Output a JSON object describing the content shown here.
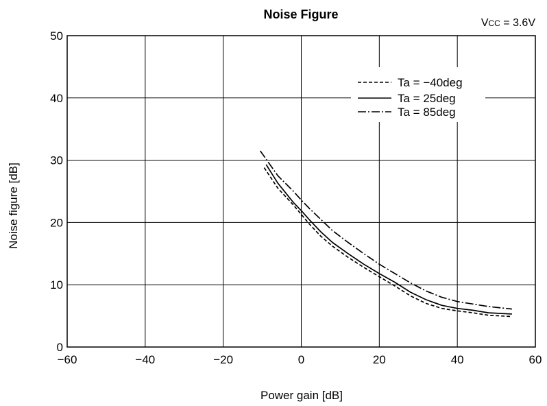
{
  "chart_data": {
    "type": "line",
    "title": "Noise Figure",
    "annotation": "Vcc = 3.6V",
    "annotation_parts": {
      "v": "V",
      "sub": "CC",
      "rest": " = 3.6V"
    },
    "xlabel": "Power gain [dB]",
    "ylabel": "Noise figure [dB]",
    "xlim": [
      -60,
      60
    ],
    "ylim": [
      0,
      50
    ],
    "x_ticks": [
      -60,
      -40,
      -20,
      0,
      20,
      40,
      60
    ],
    "x_tick_labels": [
      "−60",
      "−40",
      "−20",
      "0",
      "20",
      "40",
      "60"
    ],
    "y_ticks": [
      0,
      10,
      20,
      30,
      40,
      50
    ],
    "y_tick_labels": [
      "0",
      "10",
      "20",
      "30",
      "40",
      "50"
    ],
    "grid": true,
    "legend_position": "top-right",
    "series": [
      {
        "name": "Ta = −40deg",
        "dash": "dashed",
        "points": [
          [
            -9.5,
            28.8
          ],
          [
            -6,
            25.5
          ],
          [
            -2,
            22.8
          ],
          [
            0,
            21.3
          ],
          [
            2,
            19.8
          ],
          [
            5,
            17.8
          ],
          [
            8,
            16.2
          ],
          [
            12,
            14.4
          ],
          [
            16,
            12.8
          ],
          [
            20,
            11.3
          ],
          [
            24,
            9.8
          ],
          [
            28,
            8.2
          ],
          [
            32,
            7.0
          ],
          [
            36,
            6.2
          ],
          [
            40,
            5.8
          ],
          [
            44,
            5.5
          ],
          [
            48,
            5.1
          ],
          [
            54,
            4.9
          ]
        ]
      },
      {
        "name": "Ta = 25deg",
        "dash": "solid",
        "points": [
          [
            -9,
            29.3
          ],
          [
            -6,
            26.3
          ],
          [
            -2,
            23.2
          ],
          [
            0,
            21.9
          ],
          [
            2,
            20.5
          ],
          [
            5,
            18.5
          ],
          [
            8,
            16.8
          ],
          [
            12,
            15.0
          ],
          [
            16,
            13.3
          ],
          [
            20,
            11.8
          ],
          [
            24,
            10.4
          ],
          [
            28,
            8.8
          ],
          [
            32,
            7.6
          ],
          [
            36,
            6.7
          ],
          [
            40,
            6.2
          ],
          [
            44,
            5.9
          ],
          [
            48,
            5.5
          ],
          [
            54,
            5.3
          ]
        ]
      },
      {
        "name": "Ta = 85deg",
        "dash": "dashdot",
        "points": [
          [
            -10.5,
            31.5
          ],
          [
            -6,
            27.5
          ],
          [
            -2,
            25.0
          ],
          [
            0,
            23.6
          ],
          [
            2,
            22.3
          ],
          [
            5,
            20.5
          ],
          [
            8,
            18.7
          ],
          [
            12,
            16.8
          ],
          [
            16,
            15.0
          ],
          [
            20,
            13.3
          ],
          [
            24,
            11.8
          ],
          [
            28,
            10.3
          ],
          [
            32,
            9.0
          ],
          [
            36,
            8.0
          ],
          [
            40,
            7.3
          ],
          [
            44,
            6.9
          ],
          [
            48,
            6.5
          ],
          [
            54,
            6.1
          ]
        ]
      }
    ]
  }
}
